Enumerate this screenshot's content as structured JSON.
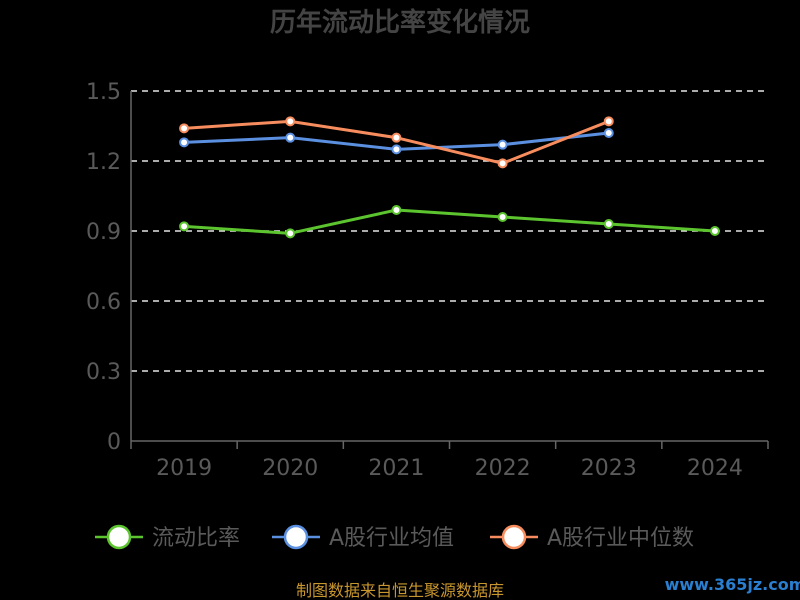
{
  "chart_data": {
    "type": "line",
    "title": "历年流动比率变化情况",
    "categories": [
      "2019",
      "2020",
      "2021",
      "2022",
      "2023",
      "2024"
    ],
    "yticks": [
      "0",
      "0.3",
      "0.6",
      "0.9",
      "1.2",
      "1.5"
    ],
    "ylim": [
      0,
      1.5
    ],
    "grid": true,
    "legend_position": "bottom",
    "series": [
      {
        "name": "流动比率",
        "color": "#5cc42e",
        "values": [
          0.92,
          0.89,
          0.99,
          0.96,
          0.93,
          0.9
        ]
      },
      {
        "name": "A股行业均值",
        "color": "#5b8fe0",
        "values": [
          1.28,
          1.3,
          1.25,
          1.27,
          1.32,
          null
        ]
      },
      {
        "name": "A股行业中位数",
        "color": "#f78d5e",
        "values": [
          1.34,
          1.37,
          1.3,
          1.19,
          1.37,
          null
        ]
      }
    ]
  },
  "footer": {
    "source": "制图数据来自恒生聚源数据库",
    "watermark": "www.365jz.com"
  }
}
